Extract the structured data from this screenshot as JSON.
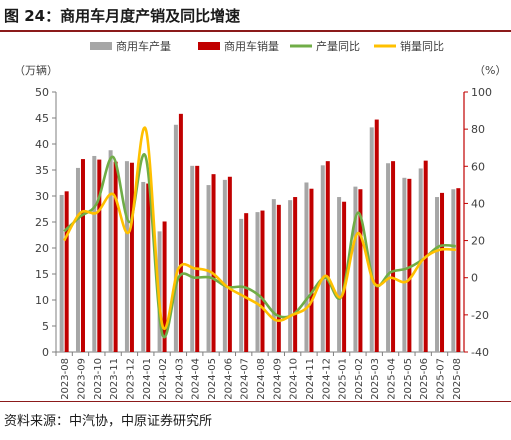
{
  "title": "图 24：商用车月度产销及同比增速",
  "source": "资料来源：中汽协，中原证券研究所",
  "colors": {
    "bar_production": "#a6a6a6",
    "bar_sales": "#c00000",
    "line_production": "#70ad47",
    "line_sales": "#ffc000",
    "axis": "#7f7f7f",
    "text": "#404040",
    "rule": "#8b1a1a"
  },
  "chart_data": {
    "type": "bar",
    "left_axis_unit": "（万辆）",
    "right_axis_unit": "（%）",
    "ylim_left": [
      0,
      50
    ],
    "yticks_left": [
      "0",
      "5",
      "10",
      "15",
      "20",
      "25",
      "30",
      "35",
      "40",
      "45",
      "50"
    ],
    "ylim_right": [
      -40,
      100
    ],
    "yticks_right": [
      "-40",
      "-20",
      "0",
      "20",
      "40",
      "60",
      "80",
      "100"
    ],
    "categories": [
      "2023-08",
      "2023-09",
      "2023-10",
      "2023-11",
      "2023-12",
      "2024-01",
      "2024-02",
      "2024-03",
      "2024-04",
      "2024-05",
      "2024-06",
      "2024-07",
      "2024-08",
      "2024-09",
      "2024-10",
      "2024-11",
      "2024-12",
      "2025-01",
      "2025-02",
      "2025-03",
      "2025-04",
      "2025-05",
      "2025-06",
      "2025-07",
      "2025-08"
    ],
    "grid": false,
    "legend_position": "top",
    "series": [
      {
        "name": "商用车产量",
        "kind": "bar",
        "axis": "left",
        "values": [
          30.2,
          35.4,
          37.7,
          38.8,
          36.7,
          32.7,
          23.2,
          43.7,
          35.8,
          32.1,
          33.1,
          25.6,
          26.9,
          29.4,
          29.2,
          32.6,
          35.9,
          29.8,
          31.8,
          43.2,
          36.3,
          33.5,
          35.3,
          29.8,
          31.3
        ]
      },
      {
        "name": "商用车销量",
        "kind": "bar",
        "axis": "left",
        "values": [
          30.9,
          37.1,
          37.0,
          36.6,
          36.4,
          32.4,
          25.1,
          45.8,
          35.8,
          34.2,
          33.7,
          26.7,
          27.2,
          28.3,
          29.8,
          31.4,
          36.7,
          28.9,
          31.3,
          44.7,
          36.7,
          33.3,
          36.8,
          30.6,
          31.5
        ]
      },
      {
        "name": "产量同比",
        "kind": "line",
        "axis": "right",
        "values": [
          25,
          33,
          40,
          65,
          30,
          65,
          -30,
          0,
          0,
          0,
          -5,
          -5,
          -10,
          -20,
          -20,
          -10,
          0,
          -10,
          35,
          -3,
          3,
          5,
          10,
          17,
          17
        ]
      },
      {
        "name": "销量同比",
        "kind": "line",
        "axis": "right",
        "values": [
          20,
          35,
          35,
          45,
          25,
          80,
          -25,
          5,
          5,
          3,
          -5,
          -10,
          -15,
          -23,
          -20,
          -15,
          1,
          -10,
          24,
          -3,
          0,
          -2,
          10,
          15,
          15
        ]
      }
    ]
  }
}
